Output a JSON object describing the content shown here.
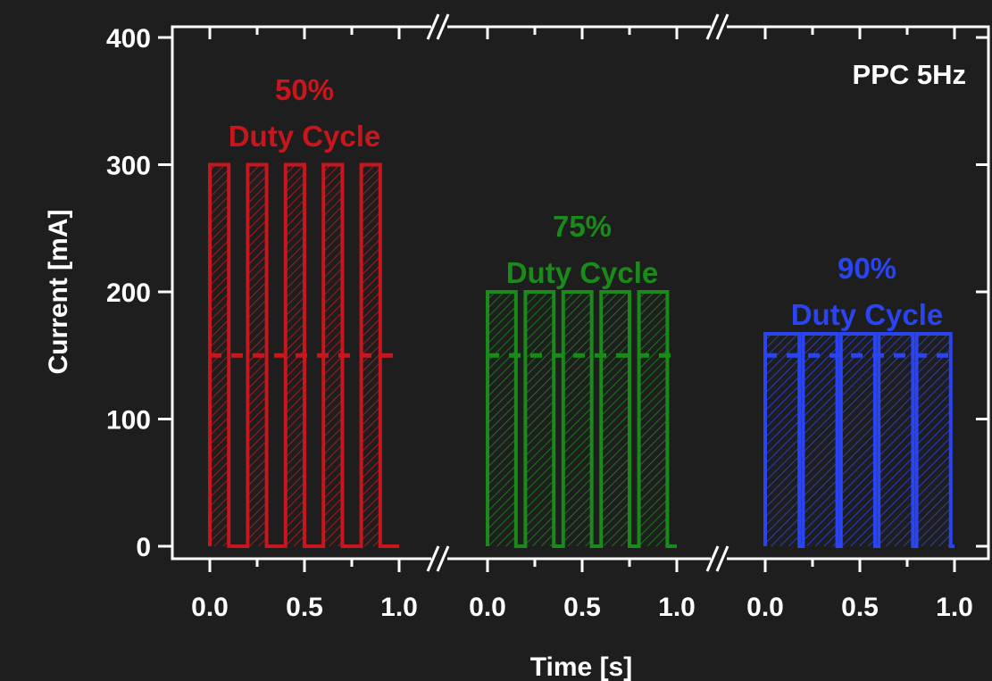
{
  "chart_data": {
    "type": "line",
    "title": "",
    "corner_label": "PPC 5Hz",
    "xlabel": "Time [s]",
    "ylabel": "Current [mA]",
    "ylim": [
      0,
      400
    ],
    "yticks": [
      0,
      100,
      200,
      300,
      400
    ],
    "ytick_labels": [
      "0",
      "100",
      "200",
      "300",
      "400"
    ],
    "xlim_per_panel": [
      0,
      1.0
    ],
    "xticks_per_panel": [
      0.0,
      0.5,
      1.0
    ],
    "xtick_labels": [
      "0.0",
      "0.5",
      "1.0"
    ],
    "frequency_hz": 5,
    "broken_x_axis": true,
    "grid": false,
    "series": [
      {
        "name": "50% Duty Cycle",
        "label_lines": [
          "50%",
          "Duty Cycle"
        ],
        "color": "#c8161d",
        "duty_cycle": 0.5,
        "amplitude": 300,
        "average": 150,
        "pulse_x": [
          [
            0.0,
            0.1
          ],
          [
            0.2,
            0.3
          ],
          [
            0.4,
            0.5
          ],
          [
            0.6,
            0.7
          ],
          [
            0.8,
            0.9
          ]
        ],
        "off_level": 0
      },
      {
        "name": "75% Duty Cycle",
        "label_lines": [
          "75%",
          "Duty Cycle"
        ],
        "color": "#1a8a1a",
        "duty_cycle": 0.75,
        "amplitude": 200,
        "average": 150,
        "pulse_x": [
          [
            0.0,
            0.15
          ],
          [
            0.2,
            0.35
          ],
          [
            0.4,
            0.55
          ],
          [
            0.6,
            0.75
          ],
          [
            0.8,
            0.95
          ]
        ],
        "off_level": 0
      },
      {
        "name": "90% Duty Cycle",
        "label_lines": [
          "90%",
          "Duty Cycle"
        ],
        "color": "#2a44f0",
        "duty_cycle": 0.9,
        "amplitude": 167,
        "average": 150,
        "pulse_x": [
          [
            0.0,
            0.18
          ],
          [
            0.2,
            0.38
          ],
          [
            0.4,
            0.58
          ],
          [
            0.6,
            0.78
          ],
          [
            0.8,
            0.98
          ]
        ],
        "off_level": 0
      }
    ]
  }
}
